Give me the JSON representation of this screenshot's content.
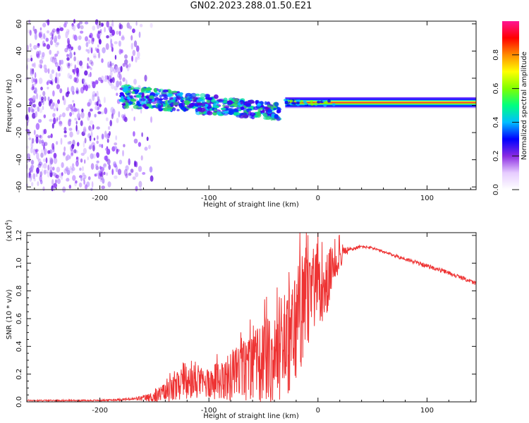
{
  "title": "GN02.2023.288.01.50.E21",
  "chart_data": [
    {
      "type": "heatmap",
      "title": "",
      "xlabel": "Height of straight line (km)",
      "ylabel": "Frequency (Hz)",
      "xlim": [
        -267,
        145
      ],
      "ylim": [
        -62,
        62
      ],
      "xticks": [
        -200,
        -100,
        0,
        100
      ],
      "yticks": [
        -60,
        -40,
        -20,
        0,
        20,
        40,
        60
      ],
      "colorbar": {
        "label": "Normalized spectral amplitude",
        "range": [
          0,
          1
        ],
        "ticks": [
          "0.0",
          "0.2",
          "0.4",
          "0.6",
          "0.8"
        ],
        "colors": [
          "#ffffff",
          "#e6ccff",
          "#8a2be2",
          "#0000ff",
          "#00bfff",
          "#00ff7f",
          "#7fff00",
          "#ffff00",
          "#ff8c00",
          "#ff0000",
          "#ff1493"
        ]
      },
      "features": {
        "noise_region_km": [
          -267,
          -150
        ],
        "band_start_km": -180,
        "band_start_freq_hz": 7,
        "band_end_km": -35,
        "band_end_freq_hz": -5,
        "steady_line_km": [
          -30,
          145
        ],
        "steady_line_freq_hz": 2
      }
    },
    {
      "type": "line",
      "title": "",
      "xlabel": "Height of straight line (km)",
      "ylabel": "SNR (10 * v/v)",
      "y_multiplier": "(x10",
      "y_multiplier_exp": "4",
      "y_multiplier_close": ")",
      "xlim": [
        -267,
        145
      ],
      "ylim": [
        0,
        1.22
      ],
      "xticks": [
        -200,
        -100,
        0,
        100
      ],
      "yticks": [
        "0.0",
        "0.2",
        "0.4",
        "0.6",
        "0.8",
        "1.0",
        "1.2"
      ],
      "series": [
        {
          "name": "SNR",
          "color": "#ee3333",
          "x": [
            -267,
            -240,
            -200,
            -170,
            -155,
            -140,
            -130,
            -120,
            -110,
            -100,
            -90,
            -80,
            -70,
            -60,
            -50,
            -40,
            -30,
            -25,
            -20,
            -15,
            -10,
            -5,
            0,
            5,
            10,
            15,
            20,
            25,
            30,
            40,
            50,
            60,
            80,
            100,
            120,
            140,
            145
          ],
          "values": [
            0.01,
            0.01,
            0.01,
            0.02,
            0.03,
            0.06,
            0.1,
            0.12,
            0.13,
            0.14,
            0.15,
            0.18,
            0.22,
            0.25,
            0.28,
            0.32,
            0.38,
            0.45,
            0.55,
            0.65,
            0.7,
            0.78,
            0.85,
            0.7,
            0.9,
            1.0,
            1.05,
            1.08,
            1.1,
            1.12,
            1.11,
            1.08,
            1.03,
            0.98,
            0.93,
            0.87,
            0.85
          ],
          "jitter_amplitude": [
            0.005,
            0.005,
            0.005,
            0.01,
            0.03,
            0.08,
            0.1,
            0.12,
            0.1,
            0.12,
            0.14,
            0.18,
            0.22,
            0.25,
            0.3,
            0.32,
            0.35,
            0.4,
            0.45,
            0.4,
            0.38,
            0.3,
            0.25,
            0.3,
            0.2,
            0.15,
            0.1,
            0.04,
            0.02,
            0.01,
            0.01,
            0.01,
            0.015,
            0.015,
            0.015,
            0.015,
            0.015
          ]
        }
      ]
    }
  ]
}
